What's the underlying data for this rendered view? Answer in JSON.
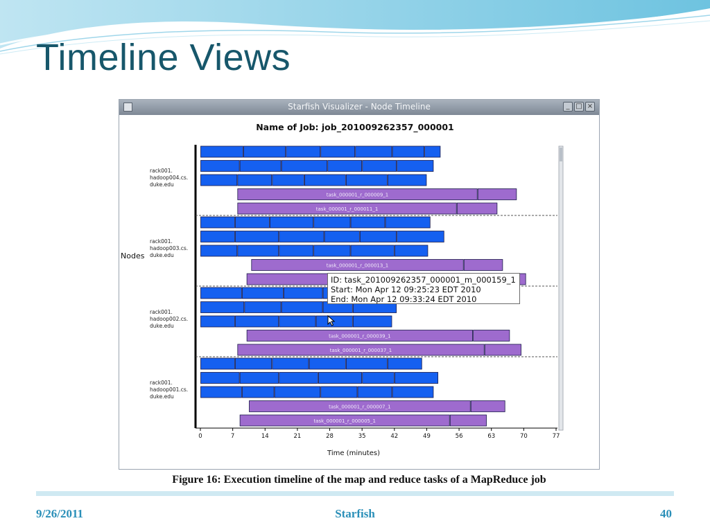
{
  "slide": {
    "title": "Timeline Views",
    "footer_date": "9/26/2011",
    "footer_center": "Starfish",
    "footer_page": "40"
  },
  "window": {
    "title": "Starfish Visualizer - Node Timeline",
    "buttons": [
      "minimize",
      "maximize",
      "close"
    ]
  },
  "colors": {
    "map_task": "#1560f0",
    "reduce_task": "#9e6bce",
    "slide_title": "#17576b",
    "footer_text": "#2a8fb8"
  },
  "chart_data": {
    "type": "timeline",
    "title": "Name of Job: job_201009262357_000001",
    "xlabel": "Time (minutes)",
    "ylabel": "Nodes",
    "xlim": [
      0,
      77
    ],
    "xticks": [
      0,
      7,
      14,
      21,
      28,
      35,
      42,
      49,
      56,
      63,
      70,
      77
    ],
    "nodes": [
      {
        "name": [
          "rack001.",
          "hadoop004.cs.",
          "duke.edu"
        ],
        "rows": [
          {
            "type": "map",
            "boundaries": [
              0,
              9.3,
              18.5,
              26,
              33.5,
              41.5,
              48.5,
              52
            ]
          },
          {
            "type": "map",
            "boundaries": [
              0,
              8.5,
              17.5,
              27.5,
              35,
              42.5,
              50.5
            ]
          },
          {
            "type": "map",
            "boundaries": [
              0,
              8,
              15.5,
              22.5,
              31.5,
              40.5,
              49
            ]
          },
          {
            "type": "reduce",
            "label": "task_000001_r_000009_1",
            "boundaries": [
              8,
              60,
              68.5
            ]
          },
          {
            "type": "reduce",
            "label": "task_000001_r_000011_1",
            "boundaries": [
              8,
              55.5,
              64.3
            ]
          }
        ]
      },
      {
        "name": [
          "rack001.",
          "hadoop003.cs.",
          "duke.edu"
        ],
        "rows": [
          {
            "type": "map",
            "boundaries": [
              0,
              7.5,
              15,
              24.5,
              32.5,
              40,
              49.8
            ]
          },
          {
            "type": "map",
            "boundaries": [
              0,
              7.5,
              17,
              26.8,
              34.5,
              42.5,
              52.8
            ]
          },
          {
            "type": "map",
            "boundaries": [
              0,
              8,
              17,
              24.5,
              32.5,
              42,
              49.3
            ]
          },
          {
            "type": "reduce",
            "label": "task_000001_r_000013_1",
            "boundaries": [
              11,
              57,
              65.5
            ]
          },
          {
            "type": "reduce",
            "label": "",
            "boundaries": [
              10,
              61.5,
              70.5
            ]
          }
        ]
      },
      {
        "name": [
          "rack001.",
          "hadoop002.cs.",
          "duke.edu"
        ],
        "rows": [
          {
            "type": "map",
            "boundaries": [
              0,
              9,
              18,
              26.5,
              32.5,
              40,
              46
            ]
          },
          {
            "type": "map",
            "boundaries": [
              0,
              9.5,
              17.5,
              26.5,
              33,
              42.5
            ]
          },
          {
            "type": "map",
            "boundaries": [
              0,
              7.5,
              17,
              25,
              33,
              41.5
            ]
          },
          {
            "type": "reduce",
            "label": "task_000001_r_000039_1",
            "boundaries": [
              10,
              59,
              67
            ]
          },
          {
            "type": "reduce",
            "label": "task_000001_r_000037_1",
            "boundaries": [
              8,
              61.5,
              69.5
            ]
          }
        ]
      },
      {
        "name": [
          "rack001.",
          "hadoop001.cs.",
          "duke.edu"
        ],
        "rows": [
          {
            "type": "map",
            "boundaries": [
              0,
              7.5,
              15.5,
              23.5,
              31.5,
              40.5,
              48
            ]
          },
          {
            "type": "map",
            "boundaries": [
              0,
              8.5,
              17,
              25.5,
              35,
              42,
              51.5
            ]
          },
          {
            "type": "map",
            "boundaries": [
              0,
              9,
              16,
              26,
              34,
              41.5,
              50.5
            ]
          },
          {
            "type": "reduce",
            "label": "task_000001_r_000007_1",
            "boundaries": [
              10.5,
              58.5,
              66
            ]
          },
          {
            "type": "reduce",
            "label": "task_000001_r_000005_1",
            "boundaries": [
              8.5,
              54,
              62
            ]
          }
        ]
      }
    ],
    "tooltip": {
      "id": "ID: task_201009262357_000001_m_000159_1",
      "start": "Start: Mon Apr 12 09:25:23 EDT 2010",
      "end": "End: Mon Apr 12 09:33:24 EDT 2010"
    }
  },
  "caption": "Figure 16: Execution timeline of the map and reduce tasks of a MapReduce job"
}
